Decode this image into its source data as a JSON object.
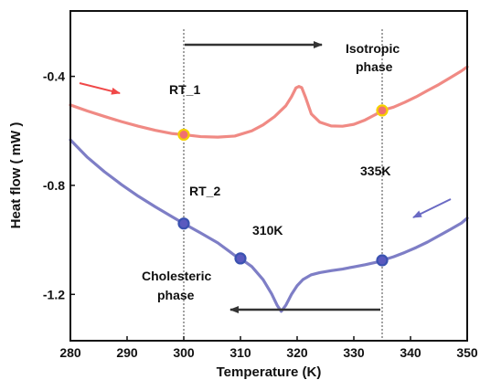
{
  "chart_data": {
    "type": "line",
    "xlabel": "Temperature (K)",
    "ylabel": "Heat flow ( mW )",
    "xlim": [
      280,
      350
    ],
    "ylim": [
      -1.37,
      -0.16
    ],
    "x_ticks": [
      "280",
      "290",
      "300",
      "310",
      "320",
      "330",
      "340",
      "350"
    ],
    "y_ticks": [
      "-1.2",
      "-0.8",
      "-0.4"
    ],
    "x_tick_values": [
      280,
      290,
      300,
      310,
      320,
      330,
      340,
      350
    ],
    "y_tick_values": [
      -1.2,
      -0.8,
      -0.4
    ],
    "grid": false,
    "colors": {
      "heating": "#f08a84",
      "cooling": "#7e7ec6",
      "marker_heating_fill": "#f07070",
      "marker_heating_edge": "#f5d000",
      "marker_cooling_fill": "#5a5abf",
      "marker_cooling_edge": "#3a52b0",
      "arrow_red": "#f04848",
      "arrow_blue": "#6a6ac4",
      "arrow_dark": "#333333"
    },
    "series": [
      {
        "x": [
          280,
          283,
          286,
          289,
          292,
          295,
          298,
          300,
          303,
          306,
          309,
          312,
          314,
          316,
          318,
          319,
          319.8,
          320.3,
          320.8,
          321.5,
          322.5,
          324,
          326,
          328,
          330,
          332,
          334,
          335,
          337,
          339,
          341,
          343,
          345,
          347,
          349,
          350
        ],
        "values": [
          -0.505,
          -0.527,
          -0.547,
          -0.566,
          -0.583,
          -0.598,
          -0.61,
          -0.614,
          -0.621,
          -0.623,
          -0.619,
          -0.6,
          -0.578,
          -0.548,
          -0.508,
          -0.475,
          -0.442,
          -0.437,
          -0.441,
          -0.478,
          -0.538,
          -0.568,
          -0.582,
          -0.583,
          -0.576,
          -0.56,
          -0.538,
          -0.525,
          -0.513,
          -0.495,
          -0.475,
          -0.452,
          -0.43,
          -0.405,
          -0.38,
          -0.365
        ]
      },
      {
        "x": [
          280,
          283,
          286,
          289,
          292,
          295,
          298,
          300,
          303,
          306,
          309,
          310,
          312,
          314,
          315.5,
          316.5,
          317.2,
          318,
          319,
          320,
          321,
          322.5,
          324,
          326,
          328,
          330,
          332,
          334,
          335,
          337,
          339,
          341,
          343,
          345,
          347,
          349,
          350
        ],
        "values": [
          -0.633,
          -0.697,
          -0.75,
          -0.797,
          -0.84,
          -0.879,
          -0.916,
          -0.94,
          -0.975,
          -1.011,
          -1.057,
          -1.068,
          -1.098,
          -1.146,
          -1.198,
          -1.241,
          -1.262,
          -1.24,
          -1.2,
          -1.168,
          -1.146,
          -1.128,
          -1.12,
          -1.113,
          -1.107,
          -1.099,
          -1.091,
          -1.082,
          -1.075,
          -1.062,
          -1.046,
          -1.028,
          -1.008,
          -0.985,
          -0.962,
          -0.938,
          -0.92
        ]
      }
    ],
    "markers": [
      {
        "x": 300,
        "y": -0.614,
        "type": "heating"
      },
      {
        "x": 335,
        "y": -0.525,
        "type": "heating"
      },
      {
        "x": 300,
        "y": -0.94,
        "type": "cooling"
      },
      {
        "x": 310,
        "y": -1.068,
        "type": "cooling"
      },
      {
        "x": 335,
        "y": -1.075,
        "type": "cooling"
      }
    ],
    "reference_lines_x": [
      300,
      335
    ],
    "annotations": {
      "rt1": "RT_1",
      "rt2": "RT_2",
      "k310": "310K",
      "k335": "335K",
      "iso1": "Isotropic",
      "iso2": "phase",
      "chol1": "Cholesteric",
      "chol2": "phase"
    }
  }
}
